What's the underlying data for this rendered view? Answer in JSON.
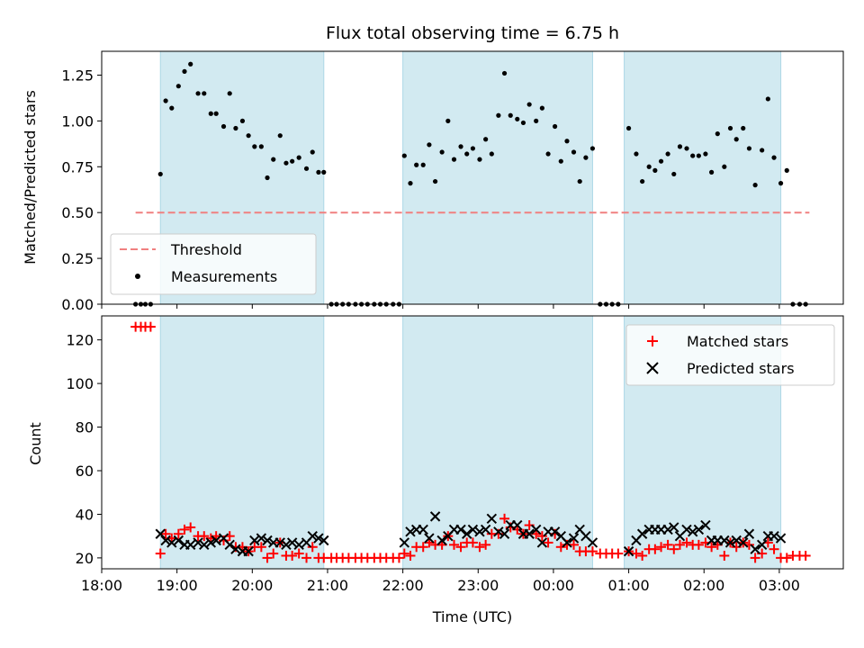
{
  "chart_data": {
    "title": "Flux total observing time = 6.75 h",
    "x_unit": "hours (continuous, 18 = 18:00 UTC, 24+ = next day)",
    "xlim": [
      18.0,
      27.85
    ],
    "xlabel": "Time (UTC)",
    "x_tick_values": [
      18,
      19,
      20,
      21,
      22,
      23,
      24,
      25,
      26,
      27
    ],
    "x_tick_labels": [
      "18:00",
      "19:00",
      "20:00",
      "21:00",
      "22:00",
      "23:00",
      "00:00",
      "01:00",
      "02:00",
      "03:00"
    ],
    "observing_windows": [
      [
        18.78,
        20.95
      ],
      [
        22.0,
        24.52
      ],
      [
        24.94,
        27.02
      ]
    ],
    "window_color": "#add8e6",
    "panels": [
      {
        "type": "scatter",
        "ylabel": "Matched/Predicted stars",
        "ylim": [
          0,
          1.38
        ],
        "y_ticks": [
          0.0,
          0.25,
          0.5,
          0.75,
          1.0,
          1.25
        ],
        "y_tick_labels": [
          "0.00",
          "0.25",
          "0.50",
          "0.75",
          "1.00",
          "1.25"
        ],
        "legend": {
          "position": "lower-left",
          "entries": [
            "Threshold",
            "Measurements"
          ]
        },
        "threshold": {
          "name": "Threshold",
          "y": 0.5,
          "x": [
            18.45,
            27.4
          ],
          "color": "#f08080"
        },
        "series": [
          {
            "name": "Measurements",
            "color": "#000000",
            "marker": "dot",
            "x": [
              18.45,
              18.52,
              18.58,
              18.65,
              18.78,
              18.85,
              18.93,
              19.02,
              19.1,
              19.18,
              19.28,
              19.36,
              19.45,
              19.52,
              19.62,
              19.7,
              19.78,
              19.87,
              19.95,
              20.03,
              20.12,
              20.2,
              20.28,
              20.37,
              20.45,
              20.53,
              20.62,
              20.72,
              20.8,
              20.88,
              20.95,
              21.05,
              21.12,
              21.2,
              21.28,
              21.37,
              21.45,
              21.53,
              21.62,
              21.7,
              21.78,
              21.87,
              21.95,
              22.02,
              22.1,
              22.18,
              22.27,
              22.35,
              22.43,
              22.52,
              22.6,
              22.68,
              22.77,
              22.85,
              22.93,
              23.02,
              23.1,
              23.18,
              23.27,
              23.35,
              23.43,
              23.52,
              23.6,
              23.68,
              23.77,
              23.85,
              23.93,
              24.02,
              24.1,
              24.18,
              24.27,
              24.35,
              24.43,
              24.52,
              24.62,
              24.7,
              24.78,
              24.86,
              25.0,
              25.1,
              25.18,
              25.27,
              25.35,
              25.43,
              25.52,
              25.6,
              25.68,
              25.77,
              25.85,
              25.93,
              26.02,
              26.1,
              26.18,
              26.27,
              26.35,
              26.43,
              26.52,
              26.6,
              26.68,
              26.77,
              26.85,
              26.93,
              27.02,
              27.1,
              27.18,
              27.27,
              27.35
            ],
            "y": [
              0.0,
              0.0,
              0.0,
              0.0,
              0.71,
              1.11,
              1.07,
              1.19,
              1.27,
              1.31,
              1.15,
              1.15,
              1.04,
              1.04,
              0.97,
              1.15,
              0.96,
              1.0,
              0.92,
              0.86,
              0.86,
              0.69,
              0.79,
              0.92,
              0.77,
              0.78,
              0.8,
              0.74,
              0.83,
              0.72,
              0.72,
              0.0,
              0.0,
              0.0,
              0.0,
              0.0,
              0.0,
              0.0,
              0.0,
              0.0,
              0.0,
              0.0,
              0.0,
              0.81,
              0.66,
              0.76,
              0.76,
              0.87,
              0.67,
              0.83,
              1.0,
              0.79,
              0.86,
              0.82,
              0.85,
              0.79,
              0.9,
              0.82,
              1.03,
              1.26,
              1.03,
              1.01,
              0.99,
              1.09,
              1.0,
              1.07,
              0.82,
              0.97,
              0.78,
              0.89,
              0.83,
              0.67,
              0.8,
              0.85,
              0.0,
              0.0,
              0.0,
              0.0,
              0.96,
              0.82,
              0.67,
              0.75,
              0.73,
              0.78,
              0.82,
              0.71,
              0.86,
              0.85,
              0.81,
              0.81,
              0.82,
              0.72,
              0.93,
              0.75,
              0.96,
              0.9,
              0.96,
              0.85,
              0.65,
              0.84,
              1.12,
              0.8,
              0.66,
              0.73,
              0.0,
              0.0,
              0.0
            ]
          }
        ]
      },
      {
        "type": "scatter",
        "ylabel": "Count",
        "ylim": [
          15,
          131
        ],
        "y_ticks": [
          20,
          40,
          60,
          80,
          100,
          120
        ],
        "y_tick_labels": [
          "20",
          "40",
          "60",
          "80",
          "100",
          "120"
        ],
        "legend": {
          "position": "upper-right",
          "entries": [
            "Matched stars",
            "Predicted stars"
          ]
        },
        "series": [
          {
            "name": "Matched stars",
            "color": "#ff0000",
            "marker": "plus",
            "x": [
              18.45,
              18.52,
              18.58,
              18.65,
              18.78,
              18.85,
              18.93,
              19.02,
              19.1,
              19.18,
              19.28,
              19.36,
              19.45,
              19.52,
              19.62,
              19.7,
              19.78,
              19.87,
              19.95,
              20.03,
              20.12,
              20.2,
              20.28,
              20.37,
              20.45,
              20.53,
              20.62,
              20.72,
              20.8,
              20.88,
              20.95,
              21.05,
              21.12,
              21.2,
              21.28,
              21.37,
              21.45,
              21.53,
              21.62,
              21.7,
              21.78,
              21.87,
              21.95,
              22.02,
              22.1,
              22.18,
              22.27,
              22.35,
              22.43,
              22.52,
              22.6,
              22.68,
              22.77,
              22.85,
              22.93,
              23.02,
              23.1,
              23.18,
              23.27,
              23.35,
              23.43,
              23.52,
              23.6,
              23.68,
              23.77,
              23.85,
              23.93,
              24.02,
              24.1,
              24.18,
              24.27,
              24.35,
              24.43,
              24.52,
              24.62,
              24.7,
              24.78,
              24.86,
              25.0,
              25.1,
              25.18,
              25.27,
              25.35,
              25.43,
              25.52,
              25.6,
              25.68,
              25.77,
              25.85,
              25.93,
              26.02,
              26.1,
              26.18,
              26.27,
              26.35,
              26.43,
              26.52,
              26.6,
              26.68,
              26.77,
              26.85,
              26.93,
              27.02,
              27.1,
              27.18,
              27.27,
              27.35
            ],
            "y": [
              126,
              126,
              126,
              126,
              22,
              31,
              29,
              31,
              33,
              34,
              30,
              30,
              29,
              30,
              28,
              30,
              25,
              25,
              23,
              25,
              25,
              20,
              22,
              27,
              21,
              21,
              22,
              20,
              25,
              20,
              20,
              20,
              20,
              20,
              20,
              20,
              20,
              20,
              20,
              20,
              20,
              20,
              20,
              22,
              21,
              25,
              25,
              27,
              26,
              26,
              30,
              26,
              25,
              27,
              27,
              25,
              26,
              31,
              31,
              38,
              34,
              33,
              31,
              35,
              31,
              30,
              27,
              31,
              25,
              26,
              26,
              23,
              23,
              23,
              22,
              22,
              22,
              22,
              23,
              22,
              21,
              24,
              24,
              25,
              26,
              24,
              26,
              27,
              26,
              26,
              27,
              25,
              26,
              21,
              27,
              25,
              27,
              26,
              20,
              22,
              27,
              24,
              20,
              20,
              21,
              21,
              21
            ]
          },
          {
            "name": "Predicted stars",
            "color": "#000000",
            "marker": "x",
            "x": [
              18.78,
              18.85,
              18.93,
              19.02,
              19.1,
              19.18,
              19.28,
              19.36,
              19.45,
              19.52,
              19.62,
              19.7,
              19.78,
              19.87,
              19.95,
              20.03,
              20.12,
              20.2,
              20.28,
              20.37,
              20.45,
              20.53,
              20.62,
              20.72,
              20.8,
              20.88,
              20.95,
              22.02,
              22.1,
              22.18,
              22.27,
              22.35,
              22.43,
              22.52,
              22.6,
              22.68,
              22.77,
              22.85,
              22.93,
              23.02,
              23.1,
              23.18,
              23.27,
              23.35,
              23.43,
              23.52,
              23.6,
              23.68,
              23.77,
              23.85,
              23.93,
              24.02,
              24.1,
              24.18,
              24.27,
              24.35,
              24.43,
              24.52,
              25.0,
              25.1,
              25.18,
              25.27,
              25.35,
              25.43,
              25.52,
              25.6,
              25.68,
              25.77,
              25.85,
              25.93,
              26.02,
              26.1,
              26.18,
              26.27,
              26.35,
              26.43,
              26.52,
              26.6,
              26.68,
              26.77,
              26.85,
              26.93,
              27.02
            ],
            "y": [
              31,
              28,
              27,
              28,
              26,
              26,
              27,
              26,
              27,
              28,
              29,
              26,
              24,
              23,
              23,
              28,
              29,
              28,
              27,
              27,
              26,
              27,
              26,
              27,
              30,
              29,
              28,
              27,
              32,
              33,
              33,
              29,
              39,
              28,
              30,
              33,
              33,
              31,
              33,
              32,
              33,
              38,
              32,
              31,
              35,
              35,
              31,
              31,
              33,
              27,
              32,
              32,
              30,
              27,
              29,
              33,
              30,
              27,
              23,
              28,
              31,
              33,
              33,
              33,
              33,
              34,
              30,
              33,
              32,
              33,
              35,
              28,
              28,
              28,
              27,
              28,
              27,
              31,
              24,
              26,
              30,
              30,
              29
            ]
          }
        ]
      }
    ]
  }
}
